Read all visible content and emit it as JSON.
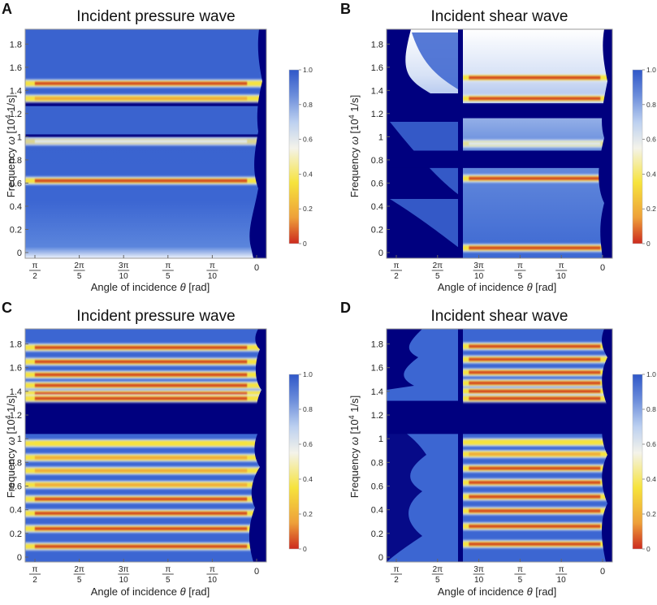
{
  "chart_data": [
    {
      "type": "heatmap",
      "panel": "A",
      "title": "Incident pressure wave",
      "ylabel_prefix": "Frequency ",
      "ylabel_omega": "ω",
      "ylabel_unit_pre": " [10",
      "ylabel_exp": "4",
      "ylabel_unit_post": " 1/s]",
      "xlabel_prefix": "Angle of incidence ",
      "xlabel_theta": "θ",
      "xlabel_unit": " [rad]",
      "ylim": [
        0,
        1.9
      ],
      "yticks": [
        "0",
        "0.2",
        "0.4",
        "0.6",
        "0.8",
        "1",
        "1.2",
        "1.4",
        "1.6",
        "1.8"
      ],
      "xlim": [
        "π/2",
        "0"
      ],
      "xticks": [
        {
          "num": "π",
          "den": "2"
        },
        {
          "num": "2π",
          "den": "5"
        },
        {
          "num": "3π",
          "den": "10"
        },
        {
          "num": "π",
          "den": "5"
        },
        {
          "num": "π",
          "den": "10"
        },
        {
          "num": "0",
          "den": ""
        }
      ],
      "colorbar": {
        "ticks": [
          "1.0",
          "0.8",
          "0.6",
          "0.4",
          "0.2",
          "0"
        ],
        "range": [
          0,
          1
        ]
      },
      "bandgaps": [
        [
          1.265,
          1.31
        ],
        [
          0.995,
          1.02
        ],
        [
          0.935,
          0.985
        ]
      ],
      "resonances": [
        {
          "y": 1.46,
          "strength": 0.95
        },
        {
          "y": 1.33,
          "strength": 0.8
        },
        {
          "y": 0.96,
          "strength": 0.35
        },
        {
          "y": 0.62,
          "strength": 0.95
        }
      ]
    },
    {
      "type": "heatmap",
      "panel": "B",
      "title": "Incident shear wave",
      "ylabel_prefix": "Frequency ",
      "ylabel_omega": "ω",
      "ylabel_unit_pre": " [10",
      "ylabel_exp": "4",
      "ylabel_unit_post": " 1/s]",
      "xlabel_prefix": "Angle of incidence ",
      "xlabel_theta": "θ",
      "xlabel_unit": " [rad]",
      "ylim": [
        0,
        1.9
      ],
      "yticks": [
        "0",
        "0.2",
        "0.4",
        "0.6",
        "0.8",
        "1",
        "1.2",
        "1.4",
        "1.6",
        "1.8"
      ],
      "xlim": [
        "π/2",
        "0"
      ],
      "xticks": [
        {
          "num": "π",
          "den": "2"
        },
        {
          "num": "2π",
          "den": "5"
        },
        {
          "num": "3π",
          "den": "10"
        },
        {
          "num": "π",
          "den": "5"
        },
        {
          "num": "π",
          "den": "10"
        },
        {
          "num": "0",
          "den": ""
        }
      ],
      "colorbar": {
        "ticks": [
          "1.0",
          "0.8",
          "0.6",
          "0.4",
          "0.2",
          "0"
        ],
        "range": [
          0,
          1
        ]
      },
      "bandgaps": [
        [
          1.16,
          1.29
        ],
        [
          0.73,
          0.88
        ]
      ],
      "resonances": [
        {
          "y": 1.51,
          "strength": 1.0
        },
        {
          "y": 1.33,
          "strength": 0.9
        },
        {
          "y": 0.94,
          "strength": 0.4
        },
        {
          "y": 0.64,
          "strength": 1.0
        },
        {
          "y": 0.04,
          "strength": 1.0
        }
      ]
    },
    {
      "type": "heatmap",
      "panel": "C",
      "title": "Incident pressure wave",
      "ylabel_prefix": "Frequency ",
      "ylabel_omega": "ω",
      "ylabel_unit_pre": " [10",
      "ylabel_exp": "4",
      "ylabel_unit_post": " 1/s]",
      "xlabel_prefix": "Angle of incidence ",
      "xlabel_theta": "θ",
      "xlabel_unit": " [rad]",
      "ylim": [
        0,
        1.9
      ],
      "yticks": [
        "0",
        "0.2",
        "0.4",
        "0.6",
        "0.8",
        "1",
        "1.2",
        "1.4",
        "1.6",
        "1.8"
      ],
      "xlim": [
        "π/2",
        "0"
      ],
      "xticks": [
        {
          "num": "π",
          "den": "2"
        },
        {
          "num": "2π",
          "den": "5"
        },
        {
          "num": "3π",
          "den": "10"
        },
        {
          "num": "π",
          "den": "5"
        },
        {
          "num": "π",
          "den": "10"
        },
        {
          "num": "0",
          "den": ""
        }
      ],
      "colorbar": {
        "ticks": [
          "1.0",
          "0.8",
          "0.6",
          "0.4",
          "0.2",
          "0"
        ],
        "range": [
          0,
          1
        ]
      },
      "bandgaps": [
        [
          1.04,
          1.32
        ]
      ],
      "resonances": [
        {
          "y": 1.77,
          "strength": 0.9
        },
        {
          "y": 1.65,
          "strength": 0.9
        },
        {
          "y": 1.54,
          "strength": 0.9
        },
        {
          "y": 1.45,
          "strength": 0.9
        },
        {
          "y": 1.38,
          "strength": 0.95
        },
        {
          "y": 1.34,
          "strength": 0.9
        },
        {
          "y": 0.96,
          "strength": 0.6
        },
        {
          "y": 0.84,
          "strength": 0.7
        },
        {
          "y": 0.73,
          "strength": 0.8
        },
        {
          "y": 0.61,
          "strength": 0.85
        },
        {
          "y": 0.49,
          "strength": 0.9
        },
        {
          "y": 0.37,
          "strength": 0.9
        },
        {
          "y": 0.24,
          "strength": 0.9
        },
        {
          "y": 0.09,
          "strength": 0.9
        }
      ]
    },
    {
      "type": "heatmap",
      "panel": "D",
      "title": "Incident shear wave",
      "ylabel_prefix": "Frequency ",
      "ylabel_omega": "ω",
      "ylabel_unit_pre": " [10",
      "ylabel_exp": "4",
      "ylabel_unit_post": " 1/s]",
      "xlabel_prefix": "Angle of incidence ",
      "xlabel_theta": "θ",
      "xlabel_unit": " [rad]",
      "ylim": [
        0,
        1.9
      ],
      "yticks": [
        "0",
        "0.2",
        "0.4",
        "0.6",
        "0.8",
        "1",
        "1.2",
        "1.4",
        "1.6",
        "1.8"
      ],
      "xlim": [
        "π/2",
        "0"
      ],
      "xticks": [
        {
          "num": "π",
          "den": "2"
        },
        {
          "num": "2π",
          "den": "5"
        },
        {
          "num": "3π",
          "den": "10"
        },
        {
          "num": "π",
          "den": "5"
        },
        {
          "num": "π",
          "den": "10"
        },
        {
          "num": "0",
          "den": ""
        }
      ],
      "colorbar": {
        "ticks": [
          "1.0",
          "0.8",
          "0.6",
          "0.4",
          "0.2",
          "0"
        ],
        "range": [
          0,
          1
        ]
      },
      "bandgaps": [
        [
          1.04,
          1.32
        ]
      ],
      "resonances": [
        {
          "y": 1.78,
          "strength": 1.0
        },
        {
          "y": 1.67,
          "strength": 1.0
        },
        {
          "y": 1.56,
          "strength": 1.0
        },
        {
          "y": 1.47,
          "strength": 1.0
        },
        {
          "y": 1.4,
          "strength": 1.0
        },
        {
          "y": 1.34,
          "strength": 1.0
        },
        {
          "y": 0.97,
          "strength": 0.6
        },
        {
          "y": 0.87,
          "strength": 0.8
        },
        {
          "y": 0.75,
          "strength": 0.9
        },
        {
          "y": 0.63,
          "strength": 0.95
        },
        {
          "y": 0.51,
          "strength": 1.0
        },
        {
          "y": 0.39,
          "strength": 1.0
        },
        {
          "y": 0.26,
          "strength": 1.0
        },
        {
          "y": 0.11,
          "strength": 1.0
        }
      ]
    }
  ],
  "colors": {
    "deep": "#00007f",
    "blue": "#3a63cc",
    "light": "#dfe9f8",
    "yellow": "#f6e33c",
    "orange": "#eea03a",
    "red": "#cc2a1e"
  }
}
